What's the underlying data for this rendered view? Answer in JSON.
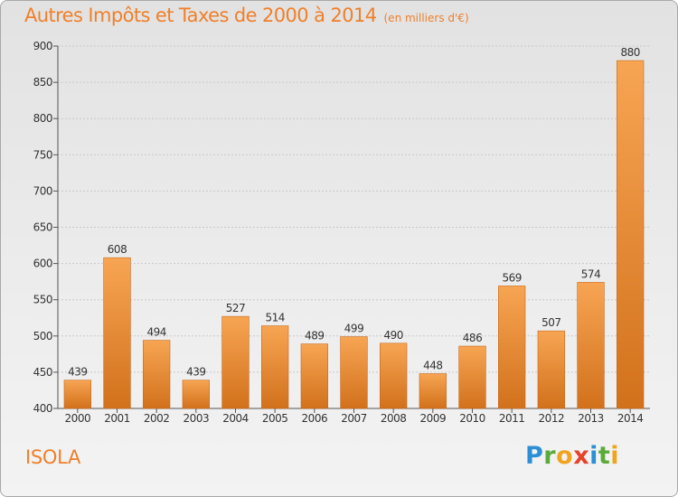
{
  "chart_data": {
    "type": "bar",
    "title": "Autres Impôts et Taxes de 2000 à 2014",
    "unit": "(en milliers d'€)",
    "categories": [
      "2000",
      "2001",
      "2002",
      "2003",
      "2004",
      "2005",
      "2006",
      "2007",
      "2008",
      "2009",
      "2010",
      "2011",
      "2012",
      "2013",
      "2014"
    ],
    "values": [
      439,
      608,
      494,
      439,
      527,
      514,
      489,
      499,
      490,
      448,
      486,
      569,
      507,
      574,
      880
    ],
    "ylim": [
      400,
      900
    ],
    "yticks": [
      400,
      450,
      500,
      550,
      600,
      650,
      700,
      750,
      800,
      850,
      900
    ],
    "grid": true,
    "legend": "none",
    "bar_color_top": "#f7a553",
    "bar_color_bottom": "#d2711c"
  },
  "footer": {
    "commune": "ISOLA",
    "brand": "Proxiti"
  },
  "colors": {
    "accent": "#f07f2a"
  }
}
